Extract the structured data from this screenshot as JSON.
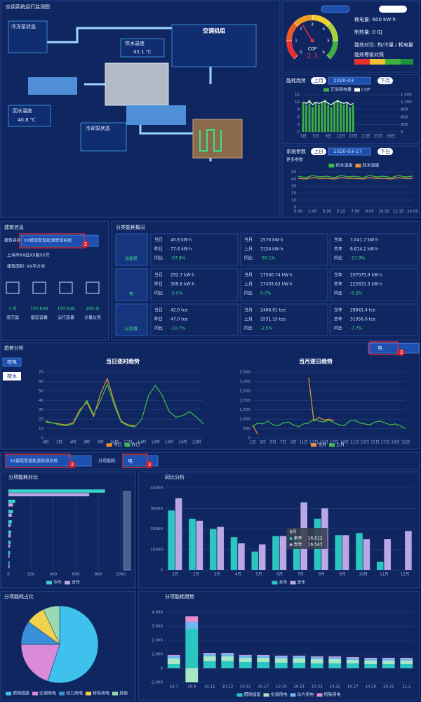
{
  "monitor": {
    "title": "空调系统运行监测图",
    "pump1": "冷冻泵状态",
    "supply": "供水温度",
    "supply_value": "42.1 ℃",
    "unit": "空调机组",
    "return": "回水温度",
    "return_value": "40.8 ℃",
    "pump2": "冷却泵状态"
  },
  "energy": {
    "power": "耗电量: 600 kW·h",
    "heat": "制热量: 0 GJ",
    "ratio": "能效对比: 热/冷量 / 耗电量",
    "level": "能效等级对照"
  },
  "trend_panel": {
    "title": "能耗趋势",
    "prev": "上月",
    "date": "2020-03",
    "next": "下月"
  },
  "param_panel": {
    "title": "系统参数",
    "prev": "上日",
    "date": "2020-03-17",
    "next": "下日",
    "more": "更多参数"
  },
  "building": {
    "title": "建筑信息",
    "select_label": "建筑名称",
    "select": "XX建筑智慧能源管理系统",
    "badge": "2",
    "address": "上海市XX区XX路XX号",
    "area": "建筑面积: XX平方米",
    "devices": [
      {
        "value": "1 台",
        "label": "变压器"
      },
      {
        "value": "150 KVA",
        "label": "额定容量"
      },
      {
        "value": "150 KVA",
        "label": "运行容量"
      },
      {
        "value": "200 台",
        "label": "计量仪表"
      }
    ]
  },
  "overview": {
    "title": "分类能耗概况",
    "labels": [
      [
        "当日",
        "昨日",
        "同比"
      ],
      [
        "当月",
        "上月",
        "同比"
      ],
      [
        "当年",
        "去年",
        "同比"
      ]
    ],
    "rows": [
      {
        "name": "总能耗",
        "groups": [
          [
            "40.8 kW·h",
            "77.6 kW·h",
            "-37.9%"
          ],
          [
            "2576 kW·h",
            "3154 kW·h",
            "-30.1%"
          ],
          [
            "7,041.7 kW·h",
            "8,614.2 kW·h",
            "-17.9%"
          ]
        ]
      },
      {
        "name": "电",
        "groups": [
          [
            "292.7 kW·h",
            "309.6 kW·h",
            "-5.5%"
          ],
          [
            "17560.74 kW·h",
            "17433.63 kW·h",
            "0.7%"
          ],
          [
            "207075.9 kW·h",
            "222631.3 kW·h",
            "-0.2%"
          ]
        ]
      },
      {
        "name": "标准煤",
        "groups": [
          [
            "42.0 tce",
            "47.0 tce",
            "-10.7%"
          ],
          [
            "2466.91 tce",
            "2531.15 tce",
            "-2.5%"
          ],
          [
            "28941.4 tce",
            "31356.0 tce",
            "-7.7%"
          ]
        ]
      }
    ]
  },
  "trend": {
    "title": "趋势分析",
    "btn1": "按电",
    "btn2": "按水",
    "select": "电",
    "badge": "3"
  },
  "filter": {
    "select": "XX建筑智慧能源管理系统",
    "badge": "2",
    "label": "分项能耗:",
    "select2": "电",
    "badge2": "3"
  },
  "tooltip": {
    "title": "6月",
    "lines": [
      {
        "name": "本年",
        "value": "16,512"
      },
      {
        "name": "去年",
        "value": "16,543"
      }
    ]
  },
  "chart_data": [
    {
      "type": "gauge",
      "label": "COP",
      "value": 2.3,
      "ylim": [
        0,
        6
      ],
      "yticks": [
        0,
        1,
        2,
        3,
        4,
        5,
        6
      ]
    },
    {
      "type": "bar",
      "categories": [
        "1日",
        null,
        null,
        null,
        "5日",
        null,
        null,
        null,
        "9日",
        null,
        null,
        null,
        "13日",
        null,
        null,
        null,
        "17日",
        null,
        null,
        null,
        "21日",
        null,
        null,
        null,
        "25日",
        null,
        null,
        null,
        "29日",
        null,
        null
      ],
      "series": [
        {
          "name": "正常耗电量",
          "color": "#3cb043",
          "values": [
            12,
            11,
            13,
            10,
            12,
            11,
            12,
            13,
            11,
            10,
            12,
            13,
            12,
            11,
            12,
            10,
            11,
            null,
            null,
            null,
            null,
            null,
            null,
            null,
            null,
            null,
            null,
            null,
            null,
            null,
            null
          ]
        },
        {
          "name": "COP",
          "color": "#ffffff",
          "axis": "y2",
          "values": [
            1200,
            1150,
            1250,
            1100,
            1200,
            1150,
            1200,
            1250,
            1150,
            1100,
            1200,
            1250,
            1200,
            1150,
            1200,
            1100,
            1150,
            null,
            null,
            null,
            null,
            null,
            null,
            null,
            null,
            null,
            null,
            null,
            null,
            null,
            null
          ]
        }
      ],
      "ylim": [
        0,
        15
      ],
      "yticks": [
        0,
        3,
        6,
        9,
        12,
        15
      ],
      "y2lim": [
        0,
        1500
      ],
      "y2ticks": [
        0,
        300,
        600,
        900,
        {
          "value": 1200,
          "label": "1,200"
        },
        {
          "value": 1500,
          "label": "1,500"
        }
      ]
    },
    {
      "type": "line",
      "categories": [
        "0:00",
        null,
        "1:45",
        null,
        "3:30",
        null,
        "5:15",
        null,
        "7:00",
        null,
        "8:45",
        null,
        "10:30",
        null,
        "12:15",
        null,
        "14:00"
      ],
      "series": [
        {
          "name": "供水温度",
          "color": "#3cc04a",
          "values": [
            44,
            42,
            45,
            43,
            44,
            42,
            45,
            43,
            44,
            42,
            45,
            43,
            44,
            42,
            45,
            43,
            44
          ]
        },
        {
          "name": "回水温度",
          "color": "#f0962e",
          "values": [
            41,
            40,
            42,
            41,
            41,
            40,
            42,
            41,
            41,
            40,
            42,
            41,
            41,
            40,
            42,
            41,
            41
          ]
        }
      ],
      "ylim": [
        0,
        50
      ],
      "yticks": [
        0,
        10,
        20,
        30,
        40,
        50
      ]
    },
    {
      "type": "line",
      "title": "当日逐时趋势",
      "categories": [
        "0时",
        null,
        "2时",
        null,
        "4时",
        null,
        "6时",
        null,
        "8时",
        null,
        "10时",
        null,
        "12时",
        null,
        "14时",
        null,
        "16时",
        null,
        "18时",
        null,
        "20时",
        null,
        "22时",
        null
      ],
      "series": [
        {
          "name": "今日",
          "color": "#f0962e",
          "values": [
            18,
            16,
            15,
            14,
            16,
            30,
            38,
            23,
            47,
            63,
            38,
            18,
            14,
            13,
            null,
            null,
            null,
            null,
            null,
            null,
            null,
            null,
            null,
            null
          ]
        },
        {
          "name": "昨日",
          "color": "#3cc04a",
          "values": [
            17,
            16,
            14,
            13,
            15,
            28,
            40,
            25,
            40,
            57,
            35,
            17,
            13,
            12,
            20,
            45,
            56,
            45,
            28,
            22,
            24,
            28,
            22,
            15
          ]
        }
      ],
      "ylim": [
        0,
        70
      ],
      "yticks": [
        0,
        10,
        20,
        30,
        40,
        50,
        60,
        70
      ]
    },
    {
      "type": "line",
      "title": "当月逐日趋势",
      "categories": [
        "1日",
        null,
        "3日",
        null,
        "5日",
        null,
        "7日",
        null,
        "9日",
        null,
        "11日",
        null,
        "13日",
        null,
        "15日",
        null,
        "17日",
        null,
        "19日",
        null,
        "21日",
        null,
        "23日",
        null,
        "25日",
        null,
        "27日",
        null,
        "29日",
        null,
        "31日"
      ],
      "series": [
        {
          "name": "当月",
          "color": "#f0962e",
          "values": [
            700,
            200,
            null,
            null,
            null,
            null,
            null,
            null,
            null,
            null,
            null,
            3200,
            900,
            1100,
            950,
            1000,
            900,
            null,
            null,
            null,
            null,
            null,
            null,
            null,
            null,
            null,
            null,
            null,
            null,
            null,
            null
          ]
        },
        {
          "name": "上月",
          "color": "#3cc04a",
          "values": [
            600,
            800,
            750,
            900,
            700,
            650,
            800,
            850,
            700,
            600,
            750,
            800,
            1000,
            900,
            850,
            950,
            800,
            700,
            650,
            900,
            950,
            800,
            750,
            700,
            850,
            900,
            800,
            700,
            750,
            650,
            500
          ]
        }
      ],
      "ylim": [
        0,
        3500
      ],
      "yticks": [
        0,
        500,
        {
          "value": 1000,
          "label": "1,000"
        },
        {
          "value": 1500,
          "label": "1,500"
        },
        {
          "value": 2000,
          "label": "2,000"
        },
        {
          "value": 2500,
          "label": "2,500"
        },
        {
          "value": 3000,
          "label": "3,000"
        },
        {
          "value": 3500,
          "label": "3,500"
        }
      ]
    },
    {
      "type": "hbar",
      "title": "分项能耗对比",
      "categories": [
        null,
        null,
        null,
        null,
        null,
        null,
        null,
        null
      ],
      "series": [
        {
          "name": "今年",
          "color": "#3ed1c9",
          "values": [
            860,
            60,
            40,
            30,
            25,
            20,
            15,
            10
          ]
        },
        {
          "name": "去年",
          "color": "#b9a7e6",
          "values": [
            720,
            40,
            30,
            20,
            20,
            15,
            10,
            10
          ]
        }
      ],
      "xlim": [
        0,
        1000
      ],
      "xticks": [
        0,
        200,
        400,
        600,
        800,
        1000
      ]
    },
    {
      "type": "bar",
      "title": "同比分析",
      "categories": [
        "1月",
        "2月",
        "3月",
        "4月",
        "5月",
        "6月",
        "7月",
        "8月",
        "9月",
        "10月",
        "11月",
        "12月"
      ],
      "series": [
        {
          "name": "本年",
          "color": "#2cc6c0",
          "values": [
            29000,
            25000,
            20000,
            16000,
            9000,
            16512,
            16000,
            25000,
            17000,
            18000,
            4000,
            null
          ]
        },
        {
          "name": "去年",
          "color": "#b9a7e6",
          "values": [
            35000,
            24000,
            21000,
            13000,
            12500,
            16543,
            33000,
            30000,
            17000,
            15000,
            15000,
            19000
          ]
        }
      ],
      "ylim": [
        0,
        40000
      ],
      "yticks": [
        0,
        10000,
        20000,
        30000,
        40000
      ]
    },
    {
      "type": "pie",
      "title": "分项能耗占比",
      "categories": [
        "照明插座",
        "空调用电",
        "动力用电",
        "特殊用电",
        "其他"
      ],
      "values": [
        55,
        20,
        10,
        8,
        7
      ],
      "colors": [
        "#3ec1ec",
        "#d98ad9",
        "#3a8fd8",
        "#f2d24a",
        "#9ad9b3"
      ]
    },
    {
      "type": "stacked",
      "title": "分项能耗趋势",
      "categories": [
        "10.7",
        "10.9",
        "10.11",
        "10.13",
        "10.15",
        "10.17",
        "10.19",
        "10.21",
        "10.23",
        "10.25",
        "10.27",
        "10.29",
        "10.31",
        "11.2"
      ],
      "series": [
        {
          "name": "照明插座",
          "color": "#2cc6c0",
          "values": [
            300,
            2800,
            500,
            500,
            450,
            450,
            400,
            400,
            350,
            350,
            350,
            300,
            300,
            300
          ]
        },
        {
          "name": "空调用电",
          "color": "#a8e6c6",
          "values": [
            400,
            -1000,
            350,
            350,
            300,
            300,
            300,
            300,
            300,
            300,
            250,
            250,
            250,
            250
          ]
        },
        {
          "name": "动力用电",
          "color": "#6fb6f0",
          "values": [
            200,
            500,
            200,
            200,
            150,
            150,
            150,
            150,
            150,
            150,
            150,
            150,
            150,
            150
          ]
        },
        {
          "name": "特殊用电",
          "color": "#e48fd0",
          "values": [
            50,
            400,
            50,
            50,
            50,
            50,
            50,
            50,
            50,
            50,
            50,
            50,
            50,
            50
          ]
        }
      ],
      "ylim": [
        -1000,
        4000
      ],
      "yticks": [
        {
          "value": -1000,
          "label": "-1,000"
        },
        0,
        {
          "value": 1000,
          "label": "1,000"
        },
        {
          "value": 2000,
          "label": "2,000"
        },
        {
          "value": 3000,
          "label": "3,000"
        },
        {
          "value": 4000,
          "label": "4,000"
        }
      ]
    }
  ]
}
